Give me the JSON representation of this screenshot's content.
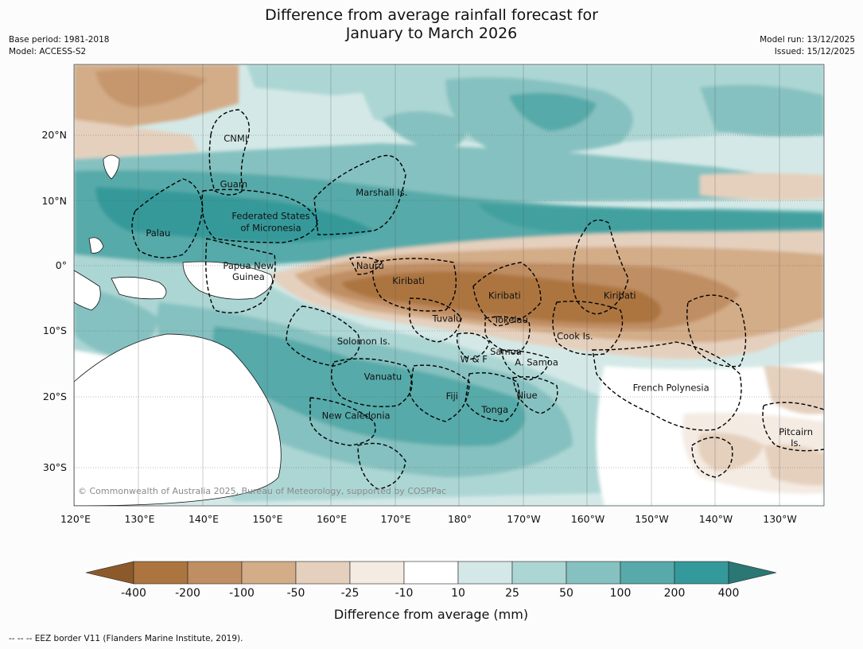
{
  "title_line1": "Difference from average rainfall forecast for",
  "title_line2": "January to March 2026",
  "meta_left": {
    "base_period": "Base period: 1981-2018",
    "model": "Model: ACCESS-S2"
  },
  "meta_right": {
    "model_run": "Model run: 13/12/2025",
    "issued": "Issued: 15/12/2025"
  },
  "lon_ticks": [
    "120°E",
    "130°E",
    "140°E",
    "150°E",
    "160°E",
    "170°E",
    "180°",
    "170°W",
    "160°W",
    "150°W",
    "140°W",
    "130°W"
  ],
  "lat_ticks": [
    "20°N",
    "10°N",
    "0°",
    "10°S",
    "20°S",
    "30°S"
  ],
  "places": [
    {
      "name": "CNMI",
      "lon": 145.0,
      "lat": 19.5
    },
    {
      "name": "Guam",
      "lon": 144.7,
      "lat": 12.5
    },
    {
      "name": "Marshall Is.",
      "lon": 167.8,
      "lat": 11.2
    },
    {
      "name": "Federated States",
      "lon": 150.5,
      "lat": 7.6
    },
    {
      "name": "of Micronesia",
      "lon": 150.5,
      "lat": 5.8
    },
    {
      "name": "Palau",
      "lon": 132.9,
      "lat": 5.0
    },
    {
      "name": "Papua New",
      "lon": 147.0,
      "lat": 0.0
    },
    {
      "name": "Guinea",
      "lon": 147.0,
      "lat": -1.7
    },
    {
      "name": "Nauru",
      "lon": 166.0,
      "lat": 0.0
    },
    {
      "name": "Kiribati",
      "lon": 172.0,
      "lat": -2.3
    },
    {
      "name": "Kiribati",
      "lon": 187.0,
      "lat": -4.6
    },
    {
      "name": "Kiribati",
      "lon": 205.0,
      "lat": -4.6
    },
    {
      "name": "Tuvalu",
      "lon": 178.0,
      "lat": -8.1
    },
    {
      "name": "Tokelau",
      "lon": 188.0,
      "lat": -8.3
    },
    {
      "name": "Cook Is.",
      "lon": 198.0,
      "lat": -10.8
    },
    {
      "name": "Solomon Is.",
      "lon": 165.0,
      "lat": -11.6
    },
    {
      "name": "W & F",
      "lon": 182.2,
      "lat": -14.3
    },
    {
      "name": "Samoa",
      "lon": 187.2,
      "lat": -13.2
    },
    {
      "name": "A. Samoa",
      "lon": 192.0,
      "lat": -14.8
    },
    {
      "name": "Vanuatu",
      "lon": 168.0,
      "lat": -17.0
    },
    {
      "name": "French Polynesia",
      "lon": 213.0,
      "lat": -18.7
    },
    {
      "name": "Fiji",
      "lon": 178.8,
      "lat": -20.0
    },
    {
      "name": "Niue",
      "lon": 190.5,
      "lat": -19.9
    },
    {
      "name": "Tonga",
      "lon": 185.5,
      "lat": -22.1
    },
    {
      "name": "New Caledonia",
      "lon": 163.8,
      "lat": -23.0
    },
    {
      "name": "Pitcairn",
      "lon": 232.5,
      "lat": -25.5
    },
    {
      "name": "Is.",
      "lon": 232.5,
      "lat": -27.2
    }
  ],
  "copyright": "© Commonwealth of Australia 2025, Bureau of Meteorology, supported by COSPPac",
  "colorbar": {
    "title": "Difference from average (mm)",
    "tick_labels": [
      "-400",
      "-200",
      "-100",
      "-50",
      "-25",
      "-10",
      "10",
      "25",
      "50",
      "100",
      "200",
      "400"
    ],
    "colors": [
      "#8c5a2a",
      "#ac7540",
      "#c08e63",
      "#d3ac88",
      "#e5d0bd",
      "#f4ebe3",
      "#ffffff",
      "#d4e9e7",
      "#acd6d4",
      "#85c1c0",
      "#57aaa9",
      "#34999a",
      "#2a7774"
    ]
  },
  "footnote": "--  --  -- EEZ border V11 (Flanders Marine Institute, 2019)."
}
